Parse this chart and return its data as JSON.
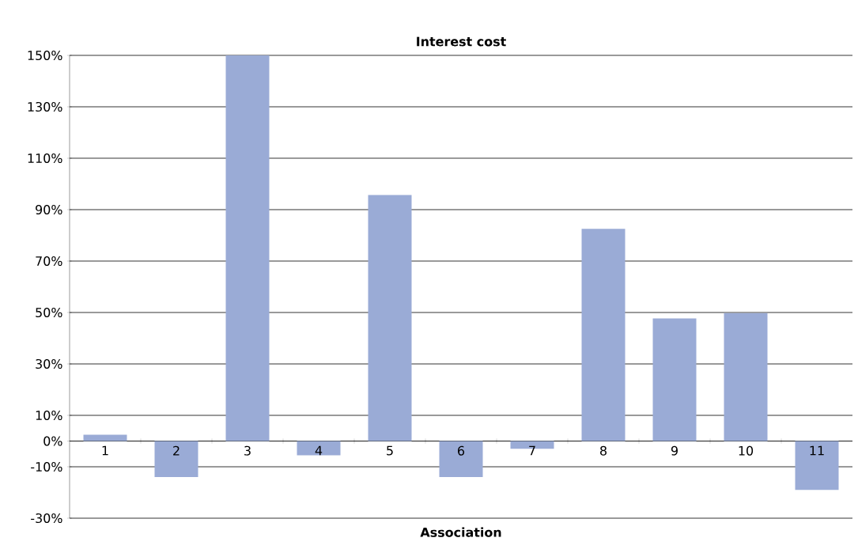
{
  "chart_data": {
    "type": "bar",
    "title": "Interest cost",
    "xlabel": "Association",
    "categories": [
      "1",
      "2",
      "3",
      "4",
      "5",
      "6",
      "7",
      "8",
      "9",
      "10",
      "11"
    ],
    "values": [
      2.5,
      -14,
      150,
      -5.5,
      95.7,
      -14,
      -3,
      82.5,
      47.7,
      49.8,
      -19
    ],
    "color": "#9aabd6",
    "ylim": [
      -30,
      150
    ],
    "yticks": [
      {
        "value": -30,
        "label": "-30%"
      },
      {
        "value": -10,
        "label": "-10%"
      },
      {
        "value": 0,
        "label": "0%"
      },
      {
        "value": 10,
        "label": "10%"
      },
      {
        "value": 30,
        "label": "30%"
      },
      {
        "value": 50,
        "label": "50%"
      },
      {
        "value": 70,
        "label": "70%"
      },
      {
        "value": 90,
        "label": "90%"
      },
      {
        "value": 110,
        "label": "110%"
      },
      {
        "value": 130,
        "label": "130%"
      },
      {
        "value": 150,
        "label": "150%"
      }
    ],
    "grid": "y"
  }
}
